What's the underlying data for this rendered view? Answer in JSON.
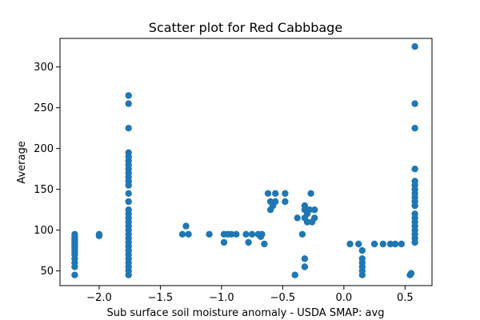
{
  "chart_data": {
    "type": "scatter",
    "title": "Scatter plot for Red Cabbbage",
    "xlabel": "Sub surface soil moisture anomaly - USDA SMAP: avg",
    "ylabel": "Average",
    "xlim": [
      -2.32,
      0.72
    ],
    "ylim": [
      32,
      335
    ],
    "x_ticks": [
      -2.0,
      -1.5,
      -1.0,
      -0.5,
      0.0,
      0.5
    ],
    "x_tick_labels": [
      "−2.0",
      "−1.5",
      "−1.0",
      "−0.5",
      "0.0",
      "0.5"
    ],
    "y_ticks": [
      50,
      100,
      150,
      200,
      250,
      300
    ],
    "y_tick_labels": [
      "50",
      "100",
      "150",
      "200",
      "250",
      "300"
    ],
    "grid": false,
    "marker_color": "#1f77b4",
    "series": [
      {
        "points": [
          [
            -2.2,
            45
          ],
          [
            -2.2,
            55
          ],
          [
            -2.2,
            60
          ],
          [
            -2.2,
            65
          ],
          [
            -2.2,
            70
          ],
          [
            -2.2,
            72
          ],
          [
            -2.2,
            75
          ],
          [
            -2.2,
            78
          ],
          [
            -2.2,
            80
          ],
          [
            -2.2,
            83
          ],
          [
            -2.2,
            85
          ],
          [
            -2.2,
            88
          ],
          [
            -2.2,
            90
          ],
          [
            -2.2,
            92
          ],
          [
            -2.2,
            95
          ],
          [
            -2.0,
            93
          ],
          [
            -2.0,
            95
          ],
          [
            -1.76,
            45
          ],
          [
            -1.76,
            50
          ],
          [
            -1.76,
            55
          ],
          [
            -1.76,
            60
          ],
          [
            -1.76,
            65
          ],
          [
            -1.76,
            70
          ],
          [
            -1.76,
            75
          ],
          [
            -1.76,
            80
          ],
          [
            -1.76,
            85
          ],
          [
            -1.76,
            90
          ],
          [
            -1.76,
            95
          ],
          [
            -1.76,
            100
          ],
          [
            -1.76,
            105
          ],
          [
            -1.76,
            110
          ],
          [
            -1.76,
            115
          ],
          [
            -1.76,
            120
          ],
          [
            -1.76,
            125
          ],
          [
            -1.76,
            135
          ],
          [
            -1.76,
            145
          ],
          [
            -1.76,
            155
          ],
          [
            -1.76,
            160
          ],
          [
            -1.76,
            165
          ],
          [
            -1.76,
            170
          ],
          [
            -1.76,
            175
          ],
          [
            -1.76,
            180
          ],
          [
            -1.76,
            185
          ],
          [
            -1.76,
            190
          ],
          [
            -1.76,
            195
          ],
          [
            -1.76,
            225
          ],
          [
            -1.76,
            255
          ],
          [
            -1.76,
            265
          ],
          [
            -1.32,
            95
          ],
          [
            -1.29,
            105
          ],
          [
            -1.27,
            95
          ],
          [
            -1.1,
            95
          ],
          [
            -0.98,
            85
          ],
          [
            -0.98,
            95
          ],
          [
            -0.95,
            95
          ],
          [
            -0.92,
            95
          ],
          [
            -0.88,
            95
          ],
          [
            -0.8,
            95
          ],
          [
            -0.78,
            85
          ],
          [
            -0.75,
            95
          ],
          [
            -0.7,
            95
          ],
          [
            -0.68,
            92
          ],
          [
            -0.67,
            95
          ],
          [
            -0.65,
            83
          ],
          [
            -0.62,
            145
          ],
          [
            -0.6,
            125
          ],
          [
            -0.6,
            135
          ],
          [
            -0.58,
            130
          ],
          [
            -0.56,
            145
          ],
          [
            -0.56,
            135
          ],
          [
            -0.48,
            135
          ],
          [
            -0.48,
            145
          ],
          [
            -0.4,
            45
          ],
          [
            -0.38,
            115
          ],
          [
            -0.34,
            95
          ],
          [
            -0.32,
            55
          ],
          [
            -0.32,
            65
          ],
          [
            -0.32,
            115
          ],
          [
            -0.32,
            125
          ],
          [
            -0.32,
            130
          ],
          [
            -0.3,
            110
          ],
          [
            -0.3,
            120
          ],
          [
            -0.28,
            125
          ],
          [
            -0.27,
            145
          ],
          [
            -0.26,
            110
          ],
          [
            -0.24,
            115
          ],
          [
            -0.24,
            125
          ],
          [
            0.05,
            83
          ],
          [
            0.12,
            83
          ],
          [
            0.15,
            45
          ],
          [
            0.15,
            50
          ],
          [
            0.15,
            55
          ],
          [
            0.15,
            60
          ],
          [
            0.15,
            65
          ],
          [
            0.15,
            75
          ],
          [
            0.25,
            83
          ],
          [
            0.32,
            83
          ],
          [
            0.38,
            83
          ],
          [
            0.42,
            83
          ],
          [
            0.47,
            83
          ],
          [
            0.54,
            45
          ],
          [
            0.55,
            47
          ],
          [
            0.58,
            85
          ],
          [
            0.58,
            90
          ],
          [
            0.58,
            95
          ],
          [
            0.58,
            100
          ],
          [
            0.58,
            105
          ],
          [
            0.58,
            110
          ],
          [
            0.58,
            115
          ],
          [
            0.58,
            120
          ],
          [
            0.58,
            130
          ],
          [
            0.58,
            135
          ],
          [
            0.58,
            140
          ],
          [
            0.58,
            145
          ],
          [
            0.58,
            150
          ],
          [
            0.58,
            155
          ],
          [
            0.58,
            160
          ],
          [
            0.58,
            175
          ],
          [
            0.58,
            225
          ],
          [
            0.58,
            255
          ],
          [
            0.58,
            325
          ]
        ]
      }
    ]
  }
}
